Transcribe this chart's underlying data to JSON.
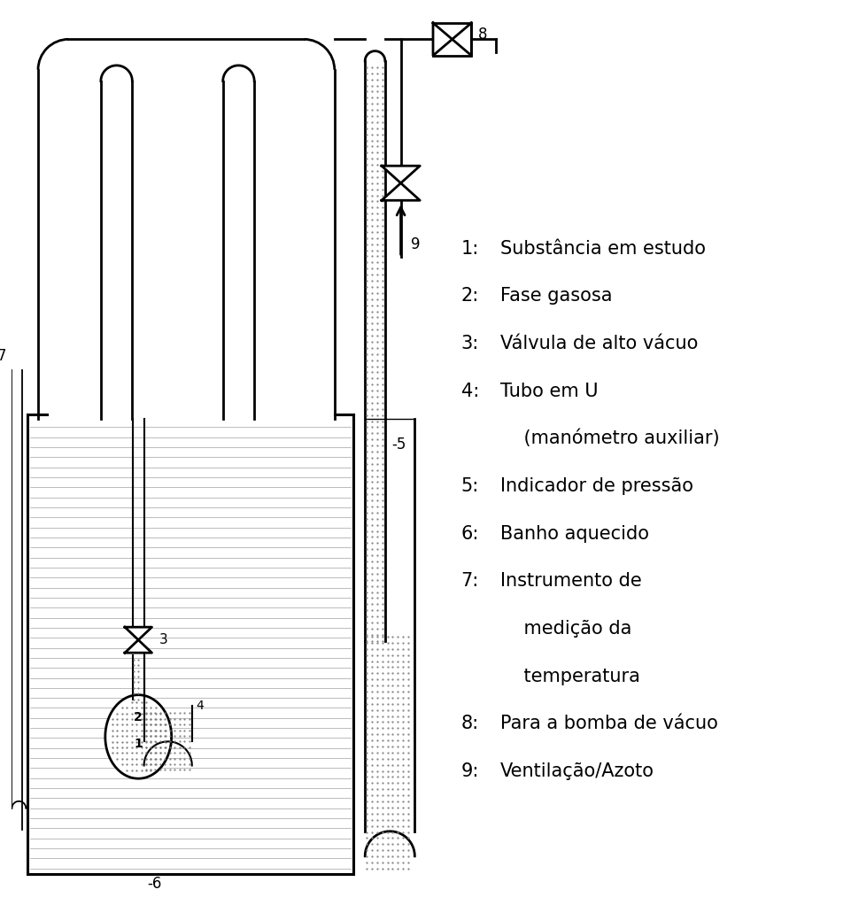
{
  "bg_color": "#ffffff",
  "line_color": "#000000",
  "stipple_color": "#888888",
  "lw": 2.0,
  "legend_items": [
    [
      "1:",
      "Substância em estudo"
    ],
    [
      "2:",
      "Fase gasosa"
    ],
    [
      "3:",
      "Válvula de alto vácuo"
    ],
    [
      "4:",
      "Tubo em U"
    ],
    [
      "",
      "    (manómetro auxiliar)"
    ],
    [
      "5:",
      "Indicador de pressão"
    ],
    [
      "6:",
      "Banho aquecido"
    ],
    [
      "7:",
      "Instrumento de"
    ],
    [
      "",
      "    medição da"
    ],
    [
      "",
      "    temperatura"
    ],
    [
      "8:",
      "Para a bomba de vácuo"
    ],
    [
      "9:",
      "Ventilação/Azoto"
    ]
  ],
  "font_size": 15
}
